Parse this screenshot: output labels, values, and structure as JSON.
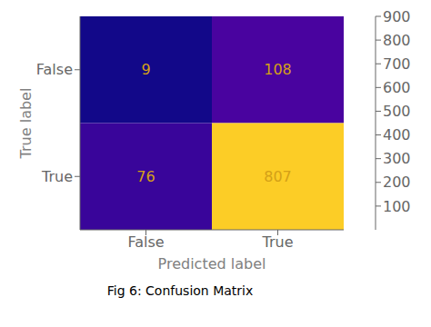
{
  "chart_data": {
    "type": "heatmap",
    "title": "Fig 6: Confusion Matrix",
    "xlabel": "Predicted label",
    "ylabel": "True label",
    "x_categories": [
      "False",
      "True"
    ],
    "y_categories": [
      "False",
      "True"
    ],
    "cells": [
      [
        9,
        108
      ],
      [
        76,
        807
      ]
    ],
    "colorbar_range": [
      0,
      900
    ],
    "colorbar_ticks": [
      100,
      200,
      300,
      400,
      500,
      600,
      700,
      800,
      900
    ],
    "data_labels": true,
    "color": "#d4a017"
  }
}
